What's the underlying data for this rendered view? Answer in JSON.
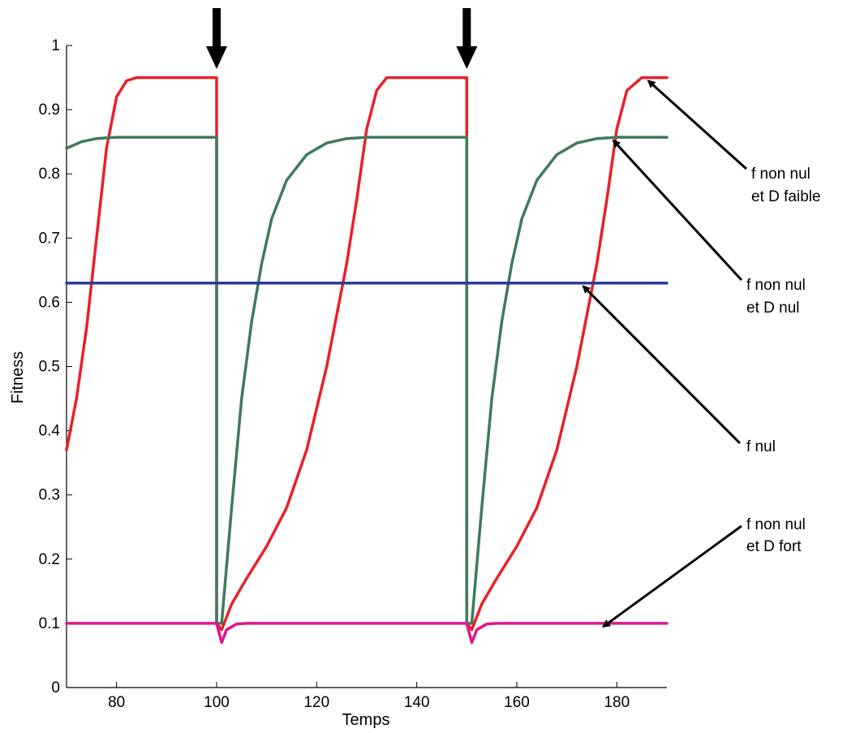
{
  "chart_data": {
    "type": "line",
    "title": "",
    "xlabel": "Temps",
    "ylabel": "Fitness",
    "xlim": [
      70,
      190
    ],
    "ylim": [
      0,
      1
    ],
    "xticks": [
      80,
      100,
      120,
      140,
      160,
      180
    ],
    "yticks": [
      0,
      0.1,
      0.2,
      0.3,
      0.4,
      0.5,
      0.6,
      0.7,
      0.8,
      0.9,
      1
    ],
    "ytick_labels": [
      "0",
      "0.1",
      "0.2",
      "0.3",
      "0.4",
      "0.5",
      "0.6",
      "0.7",
      "0.8",
      "0.9",
      "1"
    ],
    "grid": false,
    "legend": "none",
    "perturbation_times": [
      100,
      150
    ],
    "series": [
      {
        "color": "#e8202a",
        "points": [
          [
            70,
            0.37
          ],
          [
            72,
            0.45
          ],
          [
            74,
            0.56
          ],
          [
            76,
            0.7
          ],
          [
            78,
            0.84
          ],
          [
            80,
            0.92
          ],
          [
            82,
            0.945
          ],
          [
            84,
            0.95
          ],
          [
            100,
            0.95
          ],
          [
            100,
            0.1
          ],
          [
            101,
            0.09
          ],
          [
            103,
            0.13
          ],
          [
            106,
            0.17
          ],
          [
            110,
            0.22
          ],
          [
            114,
            0.28
          ],
          [
            118,
            0.37
          ],
          [
            122,
            0.5
          ],
          [
            126,
            0.66
          ],
          [
            128,
            0.76
          ],
          [
            130,
            0.87
          ],
          [
            132,
            0.93
          ],
          [
            134,
            0.95
          ],
          [
            150,
            0.95
          ],
          [
            150,
            0.1
          ],
          [
            151,
            0.09
          ],
          [
            153,
            0.13
          ],
          [
            156,
            0.17
          ],
          [
            160,
            0.22
          ],
          [
            164,
            0.28
          ],
          [
            168,
            0.37
          ],
          [
            172,
            0.5
          ],
          [
            176,
            0.66
          ],
          [
            178,
            0.76
          ],
          [
            180,
            0.87
          ],
          [
            182,
            0.93
          ],
          [
            185,
            0.95
          ],
          [
            190,
            0.95
          ]
        ]
      },
      {
        "color": "#3f7a5c",
        "points": [
          [
            70,
            0.84
          ],
          [
            73,
            0.85
          ],
          [
            76,
            0.855
          ],
          [
            80,
            0.857
          ],
          [
            100,
            0.857
          ],
          [
            100,
            0.1
          ],
          [
            101,
            0.1
          ],
          [
            103,
            0.28
          ],
          [
            105,
            0.45
          ],
          [
            107,
            0.57
          ],
          [
            109,
            0.66
          ],
          [
            111,
            0.73
          ],
          [
            114,
            0.79
          ],
          [
            118,
            0.83
          ],
          [
            122,
            0.848
          ],
          [
            126,
            0.855
          ],
          [
            130,
            0.857
          ],
          [
            150,
            0.857
          ],
          [
            150,
            0.1
          ],
          [
            151,
            0.1
          ],
          [
            153,
            0.28
          ],
          [
            155,
            0.45
          ],
          [
            157,
            0.57
          ],
          [
            159,
            0.66
          ],
          [
            161,
            0.73
          ],
          [
            164,
            0.79
          ],
          [
            168,
            0.83
          ],
          [
            172,
            0.848
          ],
          [
            176,
            0.855
          ],
          [
            180,
            0.857
          ],
          [
            190,
            0.857
          ]
        ]
      },
      {
        "color": "#2e3a9b",
        "points": [
          [
            70,
            0.63
          ],
          [
            190,
            0.63
          ]
        ]
      },
      {
        "color": "#e0168c",
        "points": [
          [
            70,
            0.1
          ],
          [
            100,
            0.1
          ],
          [
            101,
            0.07
          ],
          [
            102,
            0.09
          ],
          [
            104,
            0.099
          ],
          [
            106,
            0.1
          ],
          [
            150,
            0.1
          ],
          [
            151,
            0.07
          ],
          [
            152,
            0.09
          ],
          [
            154,
            0.099
          ],
          [
            156,
            0.1
          ],
          [
            190,
            0.1
          ]
        ]
      }
    ],
    "annotations": [
      {
        "line1": "f non nul",
        "line2": "et D faible",
        "target": [
          185,
          0.95
        ]
      },
      {
        "line1": "f non nul",
        "line2": "et D nul",
        "target": [
          178,
          0.857
        ]
      },
      {
        "line1": "f nul",
        "line2": "",
        "target": [
          172,
          0.63
        ]
      },
      {
        "line1": "f non nul",
        "line2": "et D fort",
        "target": [
          176,
          0.1
        ]
      }
    ]
  }
}
